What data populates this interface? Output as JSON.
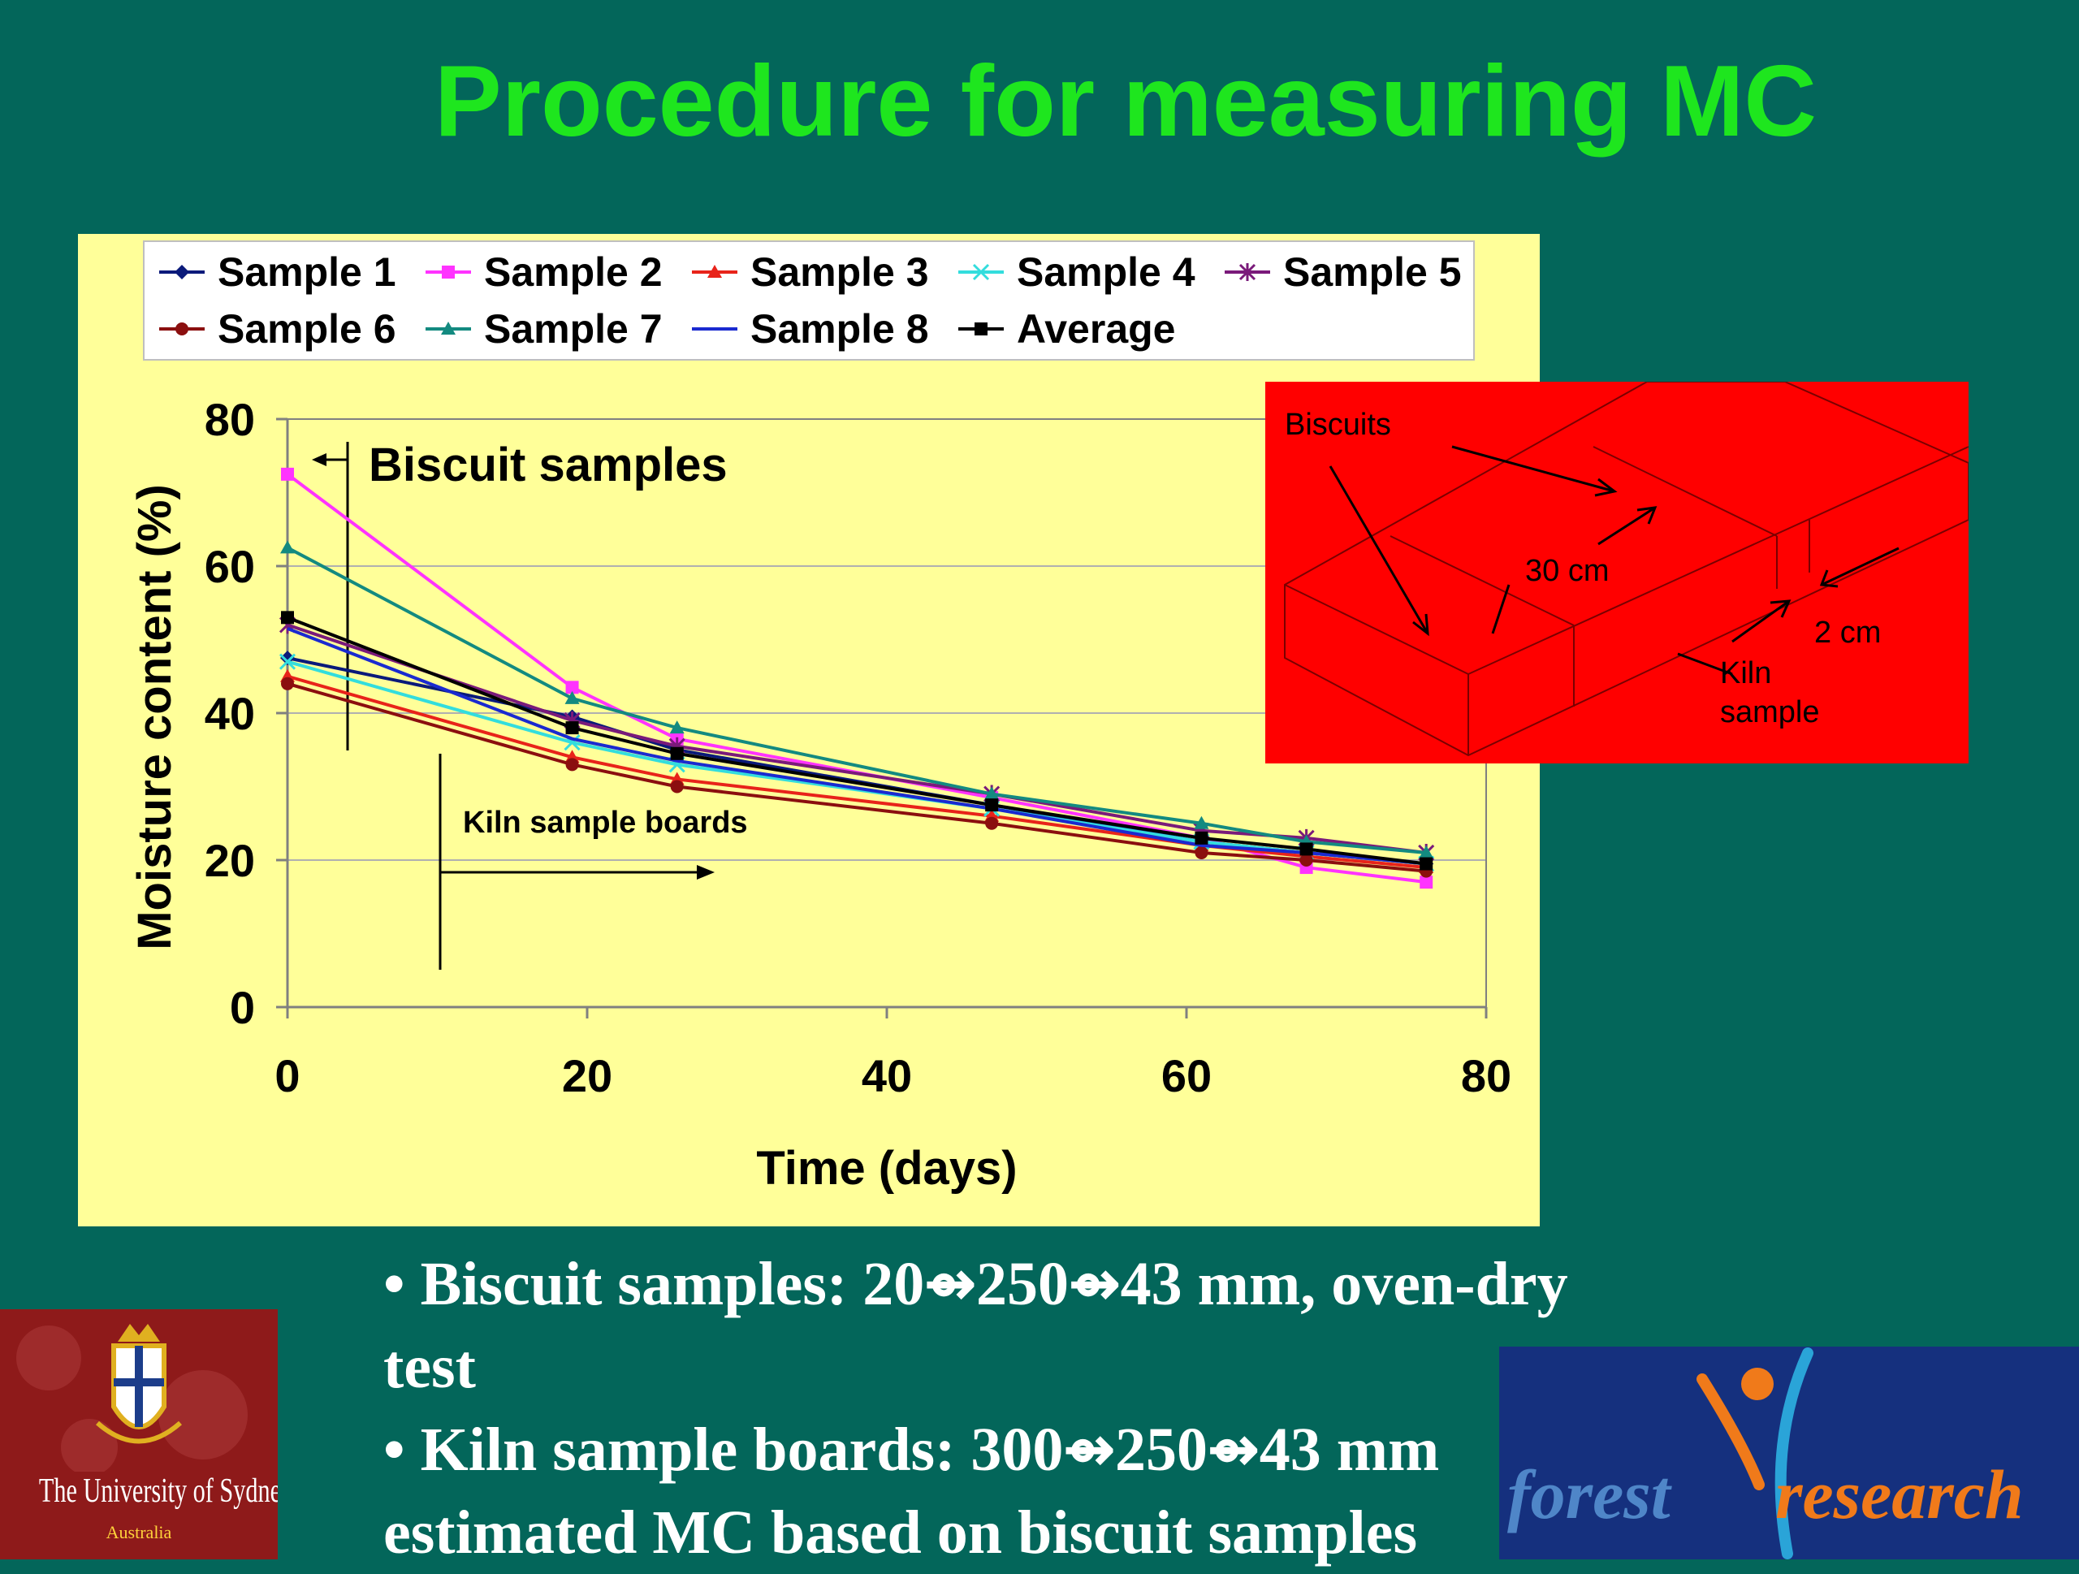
{
  "slide": {
    "title": "Procedure for measuring MC",
    "bullets": [
      "• Biscuit samples: 20⇴250⇴43 mm, oven-dry",
      "test",
      "• Kiln sample boards: 300⇴250⇴43 mm",
      "estimated MC based on biscuit samples"
    ]
  },
  "chart_data": {
    "type": "line",
    "xlabel": "Time (days)",
    "ylabel": "Moisture content (%)",
    "xlim": [
      0,
      80
    ],
    "ylim": [
      0,
      80
    ],
    "xticks": [
      0,
      20,
      40,
      60,
      80
    ],
    "yticks": [
      0,
      20,
      40,
      60,
      80
    ],
    "grid": "horizontal",
    "legend_position": "top",
    "x": [
      0,
      19,
      26,
      47,
      61,
      68,
      76
    ],
    "series": [
      {
        "name": "Sample 1",
        "color": "#0a1a7a",
        "marker": "diamond",
        "values": [
          47.5,
          39.5,
          35,
          27.5,
          22.5,
          21,
          19.5
        ]
      },
      {
        "name": "Sample 2",
        "color": "#ff33ff",
        "marker": "square",
        "values": [
          72.5,
          43.5,
          36.5,
          28.5,
          23,
          19,
          17
        ]
      },
      {
        "name": "Sample 3",
        "color": "#e8231a",
        "marker": "triangle",
        "values": [
          45,
          34,
          31,
          26,
          22,
          20.5,
          19
        ]
      },
      {
        "name": "Sample 4",
        "color": "#33dddd",
        "marker": "x",
        "values": [
          47,
          36,
          33,
          27,
          22.5,
          21,
          19.5
        ]
      },
      {
        "name": "Sample 5",
        "color": "#7a1a7a",
        "marker": "star",
        "values": [
          52,
          39,
          35.5,
          29,
          24,
          23,
          21
        ]
      },
      {
        "name": "Sample 6",
        "color": "#8b0f0f",
        "marker": "circle",
        "values": [
          44,
          33,
          30,
          25,
          21,
          20,
          18.5
        ]
      },
      {
        "name": "Sample 7",
        "color": "#138a80",
        "marker": "triangle",
        "values": [
          62.5,
          42,
          38,
          29,
          25,
          22.5,
          21
        ]
      },
      {
        "name": "Sample 8",
        "color": "#1a2ad0",
        "marker": "none",
        "values": [
          51.5,
          36.5,
          33.5,
          27,
          22,
          21,
          19.5
        ]
      },
      {
        "name": "Average",
        "color": "#000000",
        "marker": "square",
        "values": [
          53,
          38,
          34.5,
          27.5,
          23,
          21.5,
          19.5
        ]
      }
    ],
    "annotations": [
      "Biscuit samples",
      "Kiln sample boards"
    ]
  },
  "inset": {
    "labels": {
      "biscuits": "Biscuits",
      "length": "30 cm",
      "thickness": "2 cm",
      "kiln_line1": "Kiln",
      "kiln_line2": "sample"
    }
  },
  "logos": {
    "usyd_name": "The University of Sydney",
    "usyd_sub": "Australia",
    "fr_word1": "forest",
    "fr_word2": "research"
  }
}
